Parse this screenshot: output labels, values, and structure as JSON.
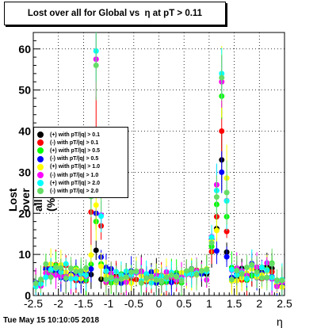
{
  "chart_data": {
    "type": "scatter",
    "title_prefix": "Lost over all for Global vs",
    "title_symbol": "η",
    "title_suffix": " at pT > 0.11",
    "xlabel": "η",
    "ylabel": "Lost over all (%)",
    "xlim": [
      -2.5,
      2.5
    ],
    "ylim": [
      0,
      64
    ],
    "xticks": [
      "-2.5",
      "-2",
      "-1.5",
      "-1",
      "-0.5",
      "0",
      "0.5",
      "1",
      "1.5",
      "2",
      "2.5"
    ],
    "yticks": [
      "0",
      "10",
      "20",
      "30",
      "40",
      "50",
      "60"
    ],
    "grid": true,
    "legend_position": "left-center",
    "timestamp": "Tue May 15 10:10:05 2018",
    "peaks": [
      {
        "eta": -1.25,
        "values": [
          11,
          40,
          18,
          20,
          22,
          57.5,
          59.5,
          56
        ]
      },
      {
        "eta": 1.25,
        "values": [
          33,
          40,
          48.5,
          30,
          52,
          52,
          54,
          53
        ]
      }
    ],
    "series": [
      {
        "name": "(+) with pT/|q| > 0.1",
        "color": "#000000"
      },
      {
        "name": "(-) with pT/|q| > 0.1",
        "color": "#ff0000"
      },
      {
        "name": "(+) with pT/|q| > 0.5",
        "color": "#00ff00"
      },
      {
        "name": "(-) with pT/|q| > 0.5",
        "color": "#0000ff"
      },
      {
        "name": "(+) with pT/|q| > 1.0",
        "color": "#ffff00"
      },
      {
        "name": "(-) with pT/|q| > 1.0",
        "color": "#ff00ff"
      },
      {
        "name": "(+) with pT/|q| > 2.0",
        "color": "#00ffff"
      },
      {
        "name": "(-) with pT/|q| > 2.0",
        "color": "#66dd66"
      }
    ]
  }
}
